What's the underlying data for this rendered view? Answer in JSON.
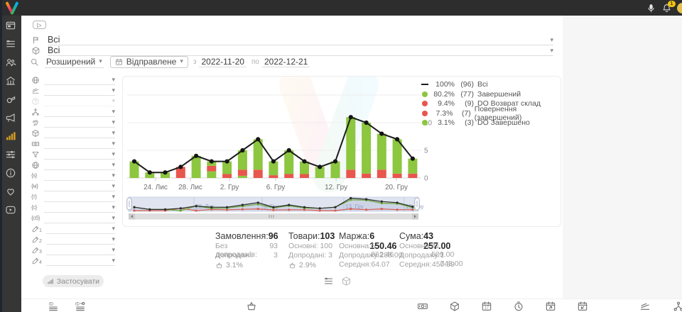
{
  "topbar": {
    "badge": "1"
  },
  "ui": {
    "caret": "▾",
    "play_glyph": "▷"
  },
  "filters": {
    "status_value": "Всі",
    "product_value": "Всі",
    "mode": "Розширений",
    "date_field": "Відправлене",
    "from_label": "з",
    "date_from": "2022-11-20",
    "to_label": "по",
    "date_to": "2022-12-21",
    "apply_label": "Застосувати"
  },
  "sidebar": {
    "items": [
      {
        "name": "app-window"
      },
      {
        "name": "orders-list"
      },
      {
        "name": "customers"
      },
      {
        "name": "warehouse"
      },
      {
        "name": "whistle"
      },
      {
        "name": "announcements"
      },
      {
        "name": "statistics",
        "active": true
      },
      {
        "name": "integrations"
      },
      {
        "name": "info"
      },
      {
        "name": "support"
      },
      {
        "name": "video-tutorials"
      }
    ]
  },
  "filter_panel": {
    "rows": [
      {
        "name": "site",
        "icon": "site"
      },
      {
        "name": "ramp",
        "icon": "ramp"
      },
      {
        "name": "help",
        "icon": "help",
        "muted": true
      },
      {
        "name": "structure",
        "icon": "structure"
      },
      {
        "name": "fingerprint",
        "icon": "fingerprint"
      },
      {
        "name": "product-type",
        "icon": "product-type"
      },
      {
        "name": "payment",
        "icon": "payment"
      },
      {
        "name": "funnel",
        "icon": "funnel"
      },
      {
        "name": "website",
        "icon": "website"
      },
      {
        "name": "size-s",
        "glyph": "{s}"
      },
      {
        "name": "size-m",
        "glyph": "{м}"
      },
      {
        "name": "size-t",
        "glyph": "{т}"
      },
      {
        "name": "size-c",
        "glyph": "{с}"
      },
      {
        "name": "size-cb",
        "glyph": "{сб}"
      },
      {
        "name": "custom-field-1",
        "icon": "custom-field",
        "sub": "1"
      },
      {
        "name": "custom-field-2",
        "icon": "custom-field",
        "sub": "2"
      },
      {
        "name": "custom-field-3",
        "icon": "custom-field",
        "sub": "3"
      },
      {
        "name": "custom-field-4",
        "icon": "custom-field",
        "sub": "4"
      }
    ]
  },
  "chart_data": {
    "type": "bar",
    "title": "",
    "colors": {
      "green": "#8dc63f",
      "red": "#e8564e",
      "line": "#1c1c1c"
    },
    "ylim": [
      0,
      15
    ],
    "yticks": [
      0,
      5,
      10
    ],
    "grid": true,
    "legend_position": "top-right",
    "legend": [
      {
        "swatch": "line",
        "pct": "100%",
        "count": "(96)",
        "label": "Всі"
      },
      {
        "swatch": "green",
        "pct": "80.2%",
        "count": "(77)",
        "label": "Завершений"
      },
      {
        "swatch": "red",
        "pct": "9.4%",
        "count": "(9)",
        "label": "DO Возврат склад"
      },
      {
        "swatch": "red",
        "pct": "7.3%",
        "count": "(7)",
        "label": "Повернення (завершений)"
      },
      {
        "swatch": "green",
        "pct": "3.1%",
        "count": "(3)",
        "label": "DO Завершено"
      }
    ],
    "xticks": [
      {
        "label": "24. Лис",
        "slot": 1.38
      },
      {
        "label": "28. Лис",
        "slot": 3.63
      },
      {
        "label": "2. Гру",
        "slot": 6.16
      },
      {
        "label": "6. Гру",
        "slot": 9.14
      },
      {
        "label": "12. Гру",
        "slot": 13.05
      },
      {
        "label": "20. Гру",
        "slot": 16.95
      }
    ],
    "bars": [
      {
        "segments": [
          [
            "green",
            3
          ]
        ]
      },
      {
        "segments": [
          [
            "green",
            1
          ]
        ]
      },
      {
        "segments": [
          [
            "green",
            1
          ]
        ]
      },
      {
        "segments": [
          [
            "red",
            2
          ]
        ]
      },
      {
        "segments": [
          [
            "green",
            4
          ]
        ]
      },
      {
        "segments": [
          [
            "green",
            1.2
          ],
          [
            "red",
            1.0
          ],
          [
            "green",
            0.8
          ]
        ]
      },
      {
        "segments": [
          [
            "red",
            0.7
          ],
          [
            "green",
            2.3
          ]
        ]
      },
      {
        "segments": [
          [
            "green",
            0.4
          ],
          [
            "red",
            1.1
          ],
          [
            "green",
            3.5
          ]
        ]
      },
      {
        "segments": [
          [
            "red",
            1.5
          ],
          [
            "green",
            5.5
          ]
        ]
      },
      {
        "segments": [
          [
            "red",
            0.5
          ],
          [
            "green",
            2.5
          ]
        ]
      },
      {
        "segments": [
          [
            "red",
            0.7
          ],
          [
            "green",
            4.3
          ]
        ]
      },
      {
        "segments": [
          [
            "red",
            0.7
          ],
          [
            "green",
            2.3
          ]
        ]
      },
      {
        "segments": [
          [
            "green",
            2
          ]
        ]
      },
      {
        "segments": [
          [
            "green",
            3
          ]
        ]
      },
      {
        "segments": [
          [
            "red",
            1.5
          ],
          [
            "green",
            9.5
          ]
        ]
      },
      {
        "segments": [
          [
            "red",
            0.8
          ],
          [
            "green",
            9.2
          ]
        ]
      },
      {
        "segments": [
          [
            "red",
            1.5
          ],
          [
            "green",
            6.5
          ]
        ]
      },
      {
        "segments": [
          [
            "red",
            0.8
          ],
          [
            "green",
            6.2
          ]
        ]
      },
      {
        "segments": [
          [
            "red",
            0.8
          ],
          [
            "green",
            2.7
          ]
        ]
      }
    ],
    "line": [
      3,
      1,
      1,
      2,
      4,
      3,
      3,
      5,
      7,
      3,
      5,
      3,
      2,
      3,
      11,
      10,
      8,
      7,
      3.5
    ],
    "nav_ticks": [
      {
        "label": "28. Лис",
        "slot": 3.86
      },
      {
        "label": "5. Гру",
        "slot": 8.27
      },
      {
        "label": "13. Гру",
        "slot": 13.55
      },
      {
        "label": "19. Гру",
        "slot": 17.45
      }
    ]
  },
  "stats": {
    "columns": [
      {
        "title": "Замовлення:",
        "value": "96",
        "rows": [
          [
            "Без допродажів:",
            "93"
          ],
          [
            "Допродані:",
            "3"
          ]
        ],
        "foot": {
          "icon": "basket",
          "value": "3.1%"
        }
      },
      {
        "title": "Товари:",
        "value": "103",
        "rows": [
          [
            "Основні:",
            "100"
          ],
          [
            "Допродані:",
            "3"
          ]
        ],
        "foot": {
          "icon": "basket",
          "value": "2.9%"
        }
      },
      {
        "title": "Маржа:",
        "value": "6 150.46",
        "rows": [
          [
            "Основна:",
            "5 862.46"
          ],
          [
            "Допродажу:",
            "288.00"
          ],
          [
            "Середня:",
            "64.07"
          ]
        ]
      },
      {
        "title": "Сума:",
        "value": "43 257.00",
        "rows": [
          [
            "Основна:",
            "41 509.00"
          ],
          [
            "Допродажу:",
            "1 748.00"
          ],
          [
            "Середня:",
            "450.59"
          ]
        ]
      }
    ]
  },
  "view_toggle": [
    {
      "name": "list-view",
      "icon": "list-view",
      "active": true
    },
    {
      "name": "grid-view",
      "icon": "grid-view",
      "active": false
    }
  ],
  "bottom_toolbar": {
    "groups": [
      {
        "name": "id-group",
        "icons": [
          "order-id",
          "order-id-ref"
        ]
      },
      {
        "name": "basket-group",
        "icons": [
          "basket"
        ]
      },
      {
        "name": "dates-group",
        "icons": [
          "payments",
          "products",
          "calendar-date",
          "processing-time",
          "calendar-sent",
          "calendar-return"
        ]
      },
      {
        "name": "structure-group",
        "icons": [
          "layers",
          "structure"
        ]
      }
    ]
  }
}
